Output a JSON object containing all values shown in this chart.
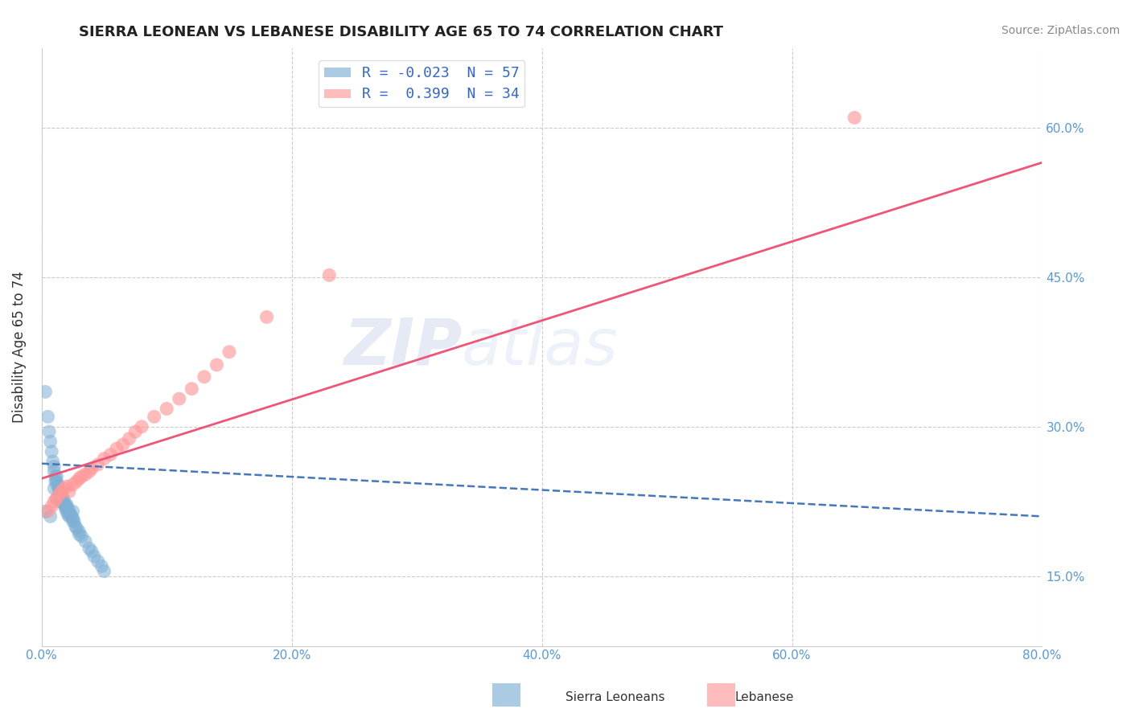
{
  "title": "SIERRA LEONEAN VS LEBANESE DISABILITY AGE 65 TO 74 CORRELATION CHART",
  "source": "Source: ZipAtlas.com",
  "ylabel": "Disability Age 65 to 74",
  "xlim": [
    0.0,
    0.8
  ],
  "ylim": [
    0.08,
    0.68
  ],
  "xticks": [
    0.0,
    0.2,
    0.4,
    0.6,
    0.8
  ],
  "xtick_labels": [
    "0.0%",
    "20.0%",
    "40.0%",
    "60.0%",
    "80.0%"
  ],
  "yticks": [
    0.15,
    0.3,
    0.45,
    0.6
  ],
  "ytick_labels": [
    "15.0%",
    "30.0%",
    "45.0%",
    "60.0%"
  ],
  "legend_R1": "-0.023",
  "legend_N1": "57",
  "legend_R2": "0.399",
  "legend_N2": "34",
  "blue_color": "#7EB0D5",
  "pink_color": "#FF9999",
  "blue_line_color": "#4477BB",
  "pink_line_color": "#EE5577",
  "background_color": "#FFFFFF",
  "grid_color": "#CCCCCC",
  "watermark_color": "#C8DCF0",
  "tick_label_color": "#5599DD",
  "sierra_x": [
    0.003,
    0.005,
    0.006,
    0.007,
    0.008,
    0.009,
    0.01,
    0.01,
    0.011,
    0.011,
    0.012,
    0.012,
    0.013,
    0.013,
    0.014,
    0.014,
    0.015,
    0.015,
    0.015,
    0.016,
    0.016,
    0.017,
    0.017,
    0.018,
    0.018,
    0.019,
    0.019,
    0.02,
    0.02,
    0.021,
    0.021,
    0.022,
    0.022,
    0.023,
    0.024,
    0.025,
    0.025,
    0.026,
    0.027,
    0.028,
    0.03,
    0.03,
    0.032,
    0.035,
    0.038,
    0.04,
    0.042,
    0.045,
    0.048,
    0.05,
    0.003,
    0.007,
    0.01,
    0.012,
    0.015,
    0.02,
    0.025
  ],
  "sierra_y": [
    0.335,
    0.31,
    0.295,
    0.285,
    0.275,
    0.265,
    0.255,
    0.26,
    0.25,
    0.245,
    0.245,
    0.25,
    0.242,
    0.24,
    0.238,
    0.235,
    0.232,
    0.235,
    0.228,
    0.23,
    0.226,
    0.228,
    0.224,
    0.225,
    0.222,
    0.22,
    0.218,
    0.222,
    0.215,
    0.218,
    0.212,
    0.215,
    0.21,
    0.212,
    0.21,
    0.208,
    0.205,
    0.205,
    0.2,
    0.198,
    0.195,
    0.192,
    0.19,
    0.185,
    0.178,
    0.175,
    0.17,
    0.165,
    0.16,
    0.155,
    0.215,
    0.21,
    0.238,
    0.228,
    0.225,
    0.22,
    0.215
  ],
  "lebanese_x": [
    0.005,
    0.008,
    0.01,
    0.012,
    0.014,
    0.016,
    0.018,
    0.02,
    0.022,
    0.025,
    0.028,
    0.03,
    0.032,
    0.035,
    0.038,
    0.04,
    0.045,
    0.05,
    0.055,
    0.06,
    0.065,
    0.07,
    0.075,
    0.08,
    0.09,
    0.1,
    0.11,
    0.12,
    0.13,
    0.14,
    0.15,
    0.18,
    0.23,
    0.65
  ],
  "lebanese_y": [
    0.215,
    0.22,
    0.225,
    0.228,
    0.232,
    0.235,
    0.238,
    0.24,
    0.235,
    0.242,
    0.245,
    0.248,
    0.25,
    0.252,
    0.255,
    0.258,
    0.262,
    0.268,
    0.272,
    0.278,
    0.282,
    0.288,
    0.295,
    0.3,
    0.31,
    0.318,
    0.328,
    0.338,
    0.35,
    0.362,
    0.375,
    0.41,
    0.452,
    0.61
  ],
  "pink_line_x0": 0.0,
  "pink_line_y0": 0.248,
  "pink_line_x1": 0.8,
  "pink_line_y1": 0.565,
  "blue_line_x0": 0.0,
  "blue_line_y0": 0.263,
  "blue_line_x1": 0.8,
  "blue_line_y1": 0.21
}
